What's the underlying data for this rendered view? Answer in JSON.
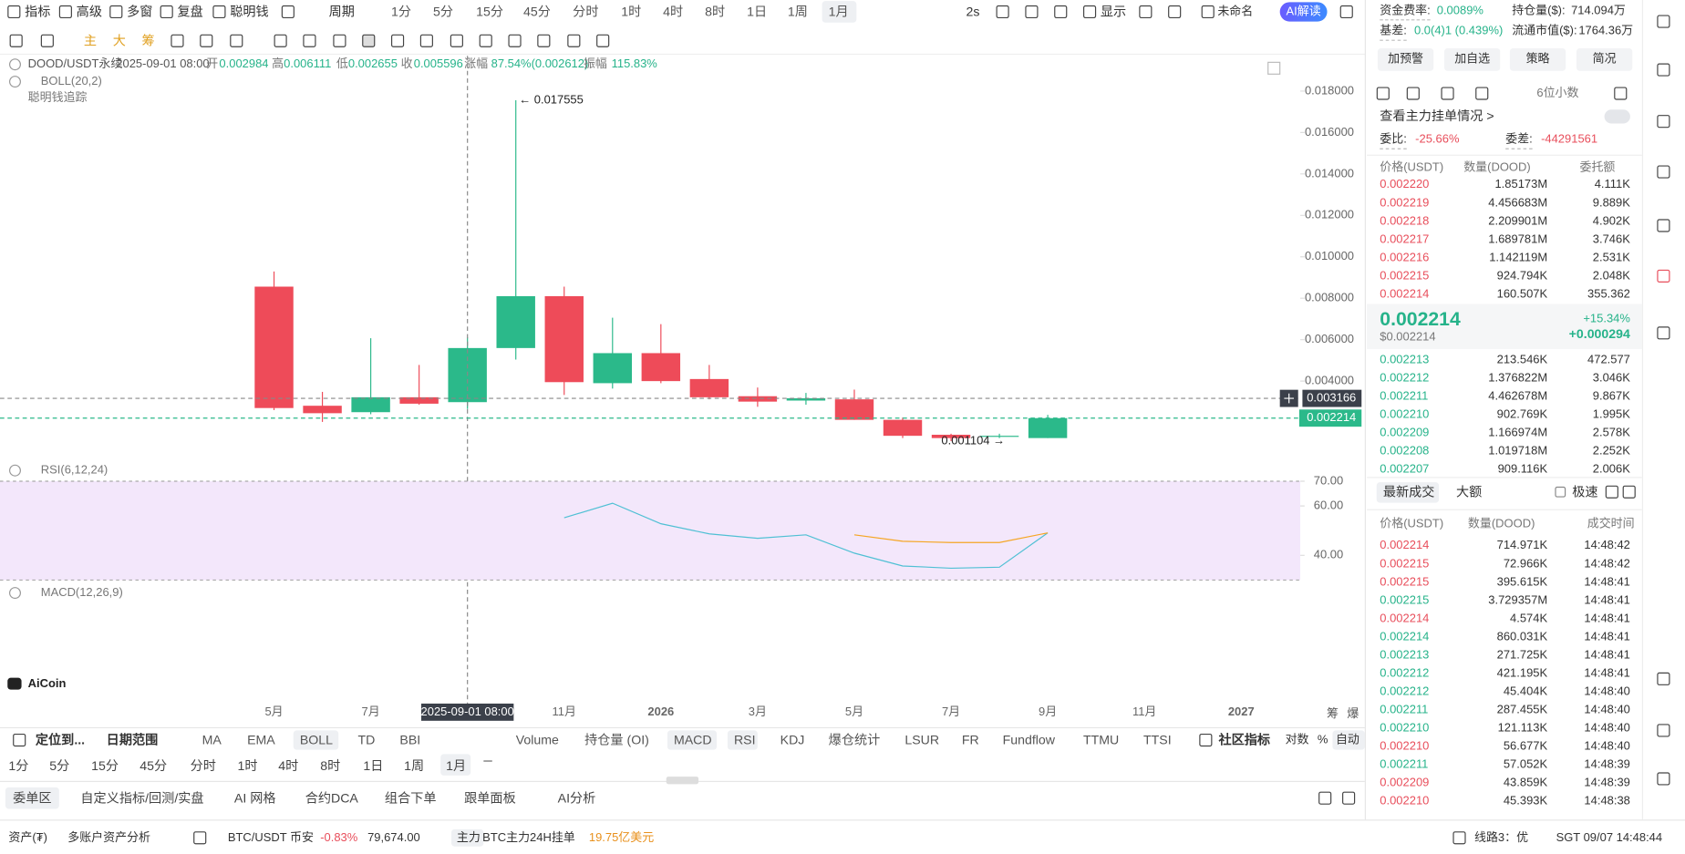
{
  "toolbar": {
    "tools": [
      "指标",
      "高级",
      "多窗",
      "复盘",
      "聪明钱"
    ],
    "period_label": "周期",
    "periods": [
      "1分",
      "5分",
      "15分",
      "45分",
      "分时",
      "1时",
      "4时",
      "8时",
      "1日",
      "1周",
      "1月"
    ],
    "refresh": "2s",
    "display": "显示",
    "layout_name": "未命名",
    "ai_button": "AI解读"
  },
  "draw_tools": [
    "主",
    "大",
    "筹"
  ],
  "chart": {
    "type": "candlestick",
    "symbol": "DOOD/USDT永续",
    "time": "2025-09-01 08:00",
    "ohlc_labels": [
      "开",
      "高",
      "低",
      "收"
    ],
    "ohlc_values": [
      "0.002984",
      "0.006111",
      "0.002655",
      "0.005596"
    ],
    "change_label": "涨幅",
    "change": "87.54%(0.002612)",
    "amplitude_label": "振幅",
    "amplitude": "115.83%",
    "indicator": "BOLL(20,2)",
    "smart_money": "聪明钱追踪",
    "x": [
      0,
      1,
      2,
      3,
      4,
      5,
      6,
      7,
      8,
      9,
      10,
      11,
      12,
      13,
      14,
      15,
      16
    ],
    "open": [
      0.00856,
      0.00281,
      0.0025,
      0.00322,
      0.002984,
      0.005596,
      0.0081,
      0.0039,
      0.00535,
      0.0041,
      0.00327,
      0.00306,
      0.00312,
      0.00213,
      0.00141,
      0.00131,
      0.00125
    ],
    "high": [
      0.00929,
      0.00348,
      0.00607,
      0.00478,
      0.006111,
      0.017555,
      0.00856,
      0.00706,
      0.00675,
      0.00478,
      0.00369,
      0.00343,
      0.00359,
      0.00224,
      0.00146,
      0.00146,
      0.00237
    ],
    "low": [
      0.0026,
      0.00203,
      0.0024,
      0.00286,
      0.002655,
      0.00504,
      0.00333,
      0.00364,
      0.0039,
      0.00312,
      0.00276,
      0.00286,
      0.00213,
      0.00125,
      0.001104,
      0.00125,
      0.00125
    ],
    "close": [
      0.0027,
      0.00245,
      0.00322,
      0.00291,
      0.005596,
      0.0081,
      0.00395,
      0.00535,
      0.004,
      0.00322,
      0.00301,
      0.00317,
      0.00213,
      0.00136,
      0.00125,
      0.00136,
      0.002214
    ],
    "up_color": "#2bb98a",
    "down_color": "#ee4b59",
    "xlim": [
      -5.6667,
      21.2222
    ],
    "xticks": [
      {
        "value": 0,
        "label": "5月"
      },
      {
        "value": 2,
        "label": "7月"
      },
      {
        "value": 6,
        "label": "11月"
      },
      {
        "value": 8,
        "label": "2026"
      },
      {
        "value": 10,
        "label": "3月"
      },
      {
        "value": 12,
        "label": "5月"
      },
      {
        "value": 14,
        "label": "7月"
      },
      {
        "value": 16,
        "label": "9月"
      },
      {
        "value": 18,
        "label": "11月"
      },
      {
        "value": 20,
        "label": "2027"
      }
    ],
    "ylim": [
      0.0001,
      0.0197
    ],
    "yticks": [
      {
        "value": 0.004,
        "label": "0.004000"
      },
      {
        "value": 0.006,
        "label": "0.006000"
      },
      {
        "value": 0.008,
        "label": "0.008000"
      },
      {
        "value": 0.01,
        "label": "0.010000"
      },
      {
        "value": 0.012,
        "label": "0.012000"
      },
      {
        "value": 0.014,
        "label": "0.014000"
      },
      {
        "value": 0.016,
        "label": "0.016000"
      },
      {
        "value": 0.018,
        "label": "0.018000"
      }
    ],
    "high_label": "← 0.017555",
    "low_label": "0.001104 →",
    "crosshair": {
      "x": 4,
      "label": "2025-09-01 08:00",
      "price": {
        "value": 0.003166,
        "label": "0.003166"
      }
    },
    "last_price": {
      "value": 0.002214,
      "label": "0.002214"
    },
    "axis_buttons": [
      "筹",
      "爆"
    ]
  },
  "rsi": {
    "type": "line",
    "label": "RSI(6,12,24)",
    "ylim": [
      30,
      70
    ],
    "yticks": [
      {
        "value": 40,
        "label": "40.00"
      },
      {
        "value": 60,
        "label": "60.00"
      },
      {
        "value": 70,
        "label": "70.00"
      }
    ],
    "series": [
      {
        "color": "#4fc0d4",
        "values": [
          null,
          null,
          null,
          null,
          null,
          null,
          55.2,
          61.1,
          52.8,
          48.7,
          46.9,
          48.3,
          40.9,
          35.7,
          34.8,
          35.2,
          49.1
        ]
      },
      {
        "color": "#f5a623",
        "values": [
          null,
          null,
          null,
          null,
          null,
          null,
          null,
          null,
          null,
          null,
          null,
          null,
          48.3,
          45.7,
          45.2,
          45.2,
          49.1
        ]
      }
    ]
  },
  "macd_label": "MACD(12,26,9)",
  "logo": "AiCoin",
  "indicator_bar": {
    "locate": "定位到...",
    "date_range": "日期范围",
    "main": [
      "MA",
      "EMA",
      "BOLL",
      "TD",
      "BBI"
    ],
    "sub": [
      "Volume",
      "持仓量 (OI)",
      "MACD",
      "RSI",
      "KDJ",
      "爆仓统计",
      "LSUR",
      "FR",
      "Fundflow",
      "TTMU",
      "TTSI"
    ],
    "community": "社区指标",
    "right": [
      "对数",
      "%",
      "自动"
    ]
  },
  "period_row": [
    "1分",
    "5分",
    "15分",
    "45分",
    "分时",
    "1时",
    "4时",
    "8时",
    "1日",
    "1周",
    "1月"
  ],
  "tabs": [
    "委单区",
    "自定义指标/回测/实盘",
    "AI 网格",
    "合约DCA",
    "组合下单",
    "跟单面板",
    "AI分析"
  ],
  "status_bar": {
    "assets": "资产(₮)",
    "multi": "多账户资产分析",
    "ticker": "BTC/USDT 币安",
    "change": "-0.83%",
    "price": "79,674.00",
    "tag": "主力",
    "flow_label": "BTC主力24H挂单",
    "flow": "19.75亿美元",
    "line": "线路3：优",
    "clock": "SGT 09/07 14:48:44"
  },
  "market_info": {
    "funding_label": "资金费率:",
    "funding": "0.0089%",
    "oi_label": "持仓量($):",
    "oi": "714.094万",
    "basis_label": "基差:",
    "basis": "0.0(4)1 (0.439%)",
    "mcap_label": "流通市值($):",
    "mcap": "1764.36万",
    "buttons": [
      "加预警",
      "加自选",
      "策略",
      "简况"
    ]
  },
  "order_book": {
    "decimals": "6位小数",
    "main_orders": "查看主力挂单情况 >",
    "ratio_label": "委比:",
    "ratio": "-25.66%",
    "diff_label": "委差:",
    "diff": "-44291561",
    "headers": [
      "价格(USDT)",
      "数量(DOOD)",
      "委托额"
    ],
    "asks": [
      [
        "0.002220",
        "1.85173M",
        "4.111K"
      ],
      [
        "0.002219",
        "4.456683M",
        "9.889K"
      ],
      [
        "0.002218",
        "2.209901M",
        "4.902K"
      ],
      [
        "0.002217",
        "1.689781M",
        "3.746K"
      ],
      [
        "0.002216",
        "1.142119M",
        "2.531K"
      ],
      [
        "0.002215",
        "924.794K",
        "2.048K"
      ],
      [
        "0.002214",
        "160.507K",
        "355.362"
      ]
    ],
    "last": "0.002214",
    "last_usd": "$0.002214",
    "change_pct": "+15.34%",
    "change": "+0.000294",
    "bids": [
      [
        "0.002213",
        "213.546K",
        "472.577"
      ],
      [
        "0.002212",
        "1.376822M",
        "3.046K"
      ],
      [
        "0.002211",
        "4.462678M",
        "9.867K"
      ],
      [
        "0.002210",
        "902.769K",
        "1.995K"
      ],
      [
        "0.002209",
        "1.166974M",
        "2.578K"
      ],
      [
        "0.002208",
        "1.019718M",
        "2.252K"
      ],
      [
        "0.002207",
        "909.116K",
        "2.006K"
      ]
    ]
  },
  "trades": {
    "tabs": [
      "最新成交",
      "大额"
    ],
    "fast": "极速",
    "headers": [
      "价格(USDT)",
      "数量(DOOD)",
      "成交时间"
    ],
    "rows": [
      [
        "0.002214",
        "714.971K",
        "14:48:42",
        "#e84e5b"
      ],
      [
        "0.002215",
        "72.966K",
        "14:48:42",
        "#e84e5b"
      ],
      [
        "0.002215",
        "395.615K",
        "14:48:41",
        "#e84e5b"
      ],
      [
        "0.002215",
        "3.729357M",
        "14:48:41",
        "#26b38a"
      ],
      [
        "0.002214",
        "4.574K",
        "14:48:41",
        "#e84e5b"
      ],
      [
        "0.002214",
        "860.031K",
        "14:48:41",
        "#26b38a"
      ],
      [
        "0.002213",
        "271.725K",
        "14:48:41",
        "#26b38a"
      ],
      [
        "0.002212",
        "421.195K",
        "14:48:41",
        "#26b38a"
      ],
      [
        "0.002212",
        "45.404K",
        "14:48:40",
        "#26b38a"
      ],
      [
        "0.002211",
        "287.455K",
        "14:48:40",
        "#26b38a"
      ],
      [
        "0.002210",
        "121.113K",
        "14:48:40",
        "#26b38a"
      ],
      [
        "0.002210",
        "56.677K",
        "14:48:40",
        "#e84e5b"
      ],
      [
        "0.002211",
        "57.052K",
        "14:48:39",
        "#26b38a"
      ],
      [
        "0.002209",
        "43.859K",
        "14:48:39",
        "#e84e5b"
      ],
      [
        "0.002210",
        "45.393K",
        "14:48:38",
        "#e84e5b"
      ]
    ]
  }
}
